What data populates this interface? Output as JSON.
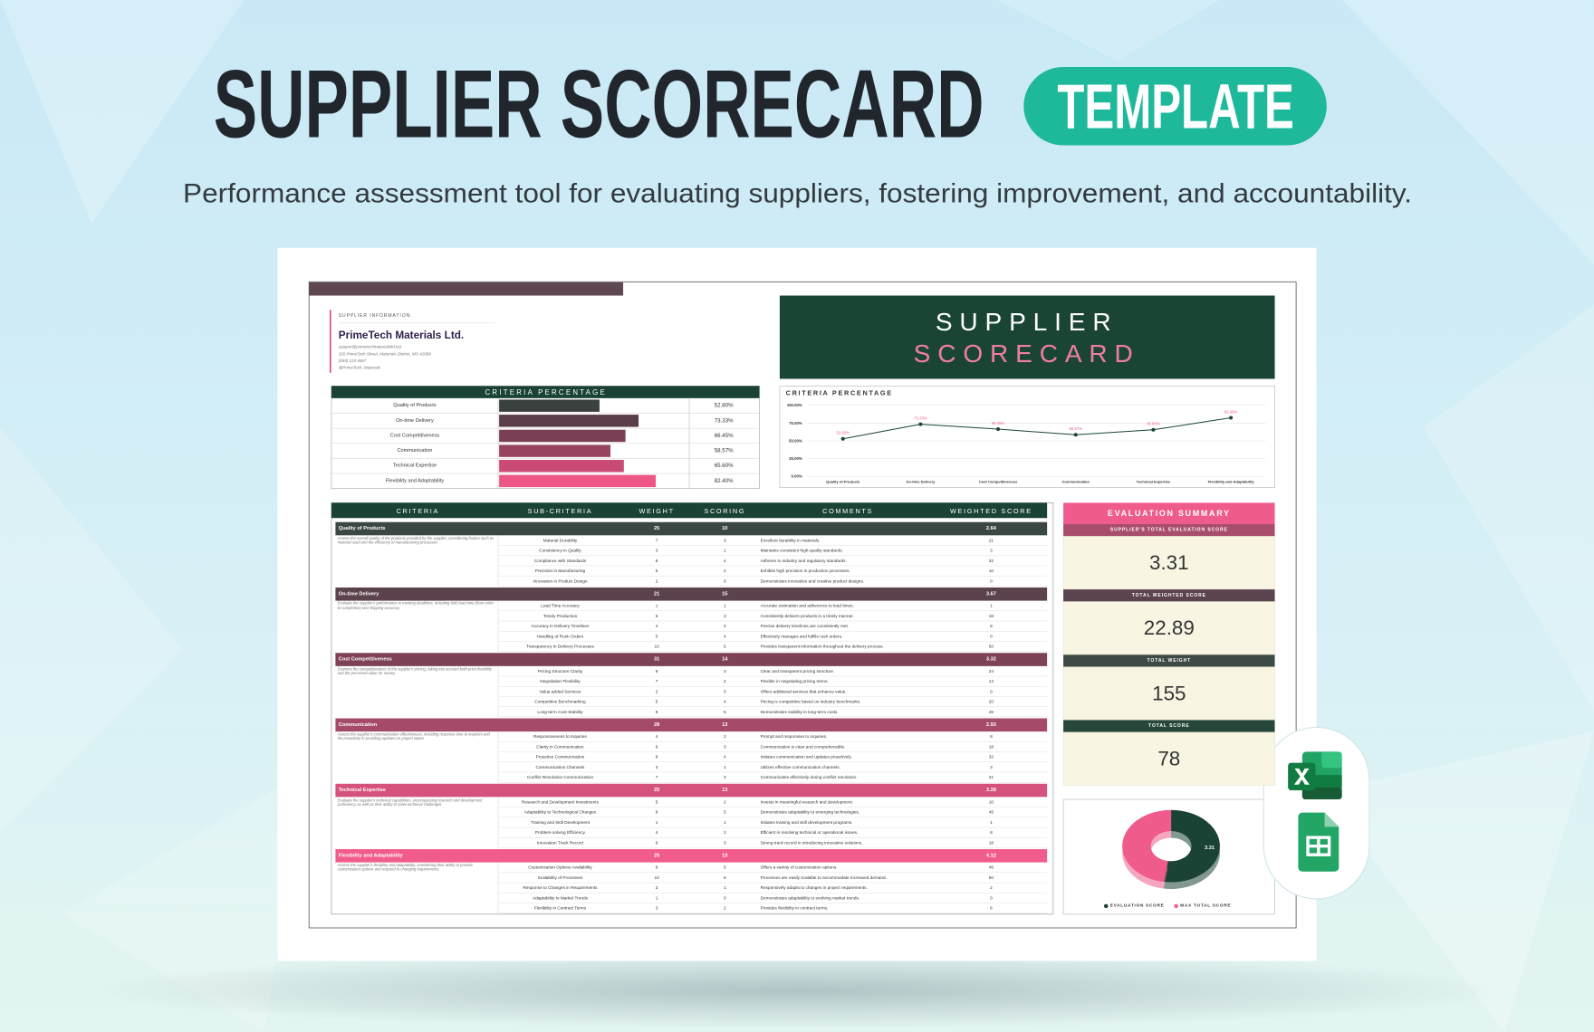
{
  "header": {
    "title": "SUPPLIER SCORECARD",
    "badge": "TEMPLATE",
    "subtitle": "Performance assessment tool for evaluating suppliers, fostering improvement, and accountability."
  },
  "supplier": {
    "label": "SUPPLIER INFORMATION:",
    "name": "PrimeTech Materials Ltd.",
    "lines": [
      "support@primetechmaterialsltd.net",
      "320 PrimeTech Street, Materials District, MO 42098",
      "(555) 123-4567",
      "@PrimeTech_Materials"
    ]
  },
  "banner": {
    "line1": "SUPPLIER",
    "line2": "SCORECARD"
  },
  "chart_data": [
    {
      "type": "bar",
      "title": "CRITERIA PERCENTAGE",
      "categories": [
        "Quality of Products",
        "On-time Delivery",
        "Cost Competitiveness",
        "Communication",
        "Technical Expertise",
        "Flexibility and Adaptability"
      ],
      "values": [
        52.8,
        73.33,
        66.45,
        58.57,
        65.6,
        82.4
      ],
      "value_labels": [
        "52.80%",
        "73.33%",
        "66.45%",
        "58.57%",
        "65.60%",
        "82.40%"
      ],
      "colors": [
        "#3b413e",
        "#5a3d48",
        "#7b3f55",
        "#984461",
        "#c94b75",
        "#ee5686"
      ],
      "xlim": [
        0,
        100
      ]
    },
    {
      "type": "line",
      "title": "CRITERIA PERCENTAGE",
      "categories": [
        "Quality of Products",
        "On-time Delivery",
        "Cost Competitiveness",
        "Communication",
        "Technical Expertise",
        "Flexibility and Adaptability"
      ],
      "values": [
        52.8,
        73.33,
        66.45,
        58.57,
        65.6,
        82.4
      ],
      "value_labels": [
        "52.80%",
        "73.33%",
        "66.45%",
        "58.57%",
        "65.60%",
        "82.40%"
      ],
      "color": "#1b4335",
      "label_color": "#ef5b8b",
      "ylim": [
        0,
        100
      ],
      "yticks": [
        {
          "value": 0,
          "label": "0.00%"
        },
        {
          "value": 25,
          "label": "25.00%"
        },
        {
          "value": 50,
          "label": "50.00%"
        },
        {
          "value": 75,
          "label": "75.00%"
        },
        {
          "value": 100,
          "label": "100.00%"
        }
      ],
      "grid": true
    },
    {
      "type": "pie",
      "categories": [
        "EVALUATION SCORE",
        "MAX TOTAL SCORE"
      ],
      "values": [
        3.31,
        3
      ],
      "colors": [
        "#1b4335",
        "#ef5b8b"
      ]
    }
  ],
  "table": {
    "columns": [
      "CRITERIA",
      "SUB-CRITERIA",
      "WEIGHT",
      "SCORING",
      "COMMENTS",
      "WEIGHTED SCORE"
    ],
    "groups": [
      {
        "name": "Quality of Products",
        "weight": 25,
        "scoring": 10,
        "weighted_score": 2.64,
        "color": "#3a4742",
        "description": "Assess the overall quality of the products provided by the supplier, considering factors such as material used and the efficiency of manufacturing processes.",
        "rows": [
          {
            "sub": "Material Durability",
            "weight": 7,
            "scoring": 3,
            "comment": "Excellent durability in materials.",
            "weighted": 21
          },
          {
            "sub": "Consistency in Quality",
            "weight": 3,
            "scoring": 1,
            "comment": "Maintains consistent high-quality standards.",
            "weighted": 3
          },
          {
            "sub": "Compliance with Standards",
            "weight": 8,
            "scoring": 4,
            "comment": "Adheres to industry and regulatory standards.",
            "weighted": 32
          },
          {
            "sub": "Precision in Manufacturing",
            "weight": 5,
            "scoring": 2,
            "comment": "Exhibits high precision in production processes.",
            "weighted": 10
          },
          {
            "sub": "Innovation in Product Design",
            "weight": 2,
            "scoring": 0,
            "comment": "Demonstrates innovative and creative product designs.",
            "weighted": 0
          }
        ]
      },
      {
        "name": "On-time Delivery",
        "weight": 21,
        "scoring": 15,
        "weighted_score": 3.67,
        "color": "#5c424c",
        "description": "Evaluate the supplier's performance in meeting deadlines, including both lead time (from order to completion) and shipping accuracy.",
        "rows": [
          {
            "sub": "Lead Time Accuracy",
            "weight": 1,
            "scoring": 1,
            "comment": "Accurate estimation and adherence to lead times.",
            "weighted": 1
          },
          {
            "sub": "Timely Production",
            "weight": 6,
            "scoring": 3,
            "comment": "Consistently delivers products in a timely manner.",
            "weighted": 18
          },
          {
            "sub": "Accuracy in Delivery Timelines",
            "weight": 4,
            "scoring": 2,
            "comment": "Precise delivery timelines are consistently met.",
            "weighted": 8
          },
          {
            "sub": "Handling of Rush Orders",
            "weight": 0,
            "scoring": 4,
            "comment": "Effectively manages and fulfills rush orders.",
            "weighted": 0
          },
          {
            "sub": "Transparency in Delivery Processes",
            "weight": 10,
            "scoring": 5,
            "comment": "Provides transparent information throughout the delivery process.",
            "weighted": 50
          }
        ]
      },
      {
        "name": "Cost Competitiveness",
        "weight": 31,
        "scoring": 14,
        "weighted_score": 3.32,
        "color": "#7e4256",
        "description": "Examine the competitiveness of the supplier's pricing, taking into account both price flexibility and the perceived value for money.",
        "rows": [
          {
            "sub": "Pricing Structure Clarity",
            "weight": 8,
            "scoring": 3,
            "comment": "Clear and transparent pricing structure.",
            "weighted": 24
          },
          {
            "sub": "Negotiation Flexibility",
            "weight": 7,
            "scoring": 2,
            "comment": "Flexible in negotiating pricing terms.",
            "weighted": 14
          },
          {
            "sub": "Value-added Services",
            "weight": 2,
            "scoring": 0,
            "comment": "Offers additional services that enhance value.",
            "weighted": 0
          },
          {
            "sub": "Competitive Benchmarking",
            "weight": 5,
            "scoring": 4,
            "comment": "Pricing is competitive based on industry benchmarks.",
            "weighted": 20
          },
          {
            "sub": "Long-term Cost Stability",
            "weight": 9,
            "scoring": 5,
            "comment": "Demonstrates stability in long-term costs.",
            "weighted": 45
          }
        ]
      },
      {
        "name": "Communication",
        "weight": 28,
        "scoring": 13,
        "weighted_score": 2.93,
        "color": "#a54a69",
        "description": "Assess the supplier's communication effectiveness, including response time to inquiries and the proactivity in providing updates on project status.",
        "rows": [
          {
            "sub": "Responsiveness to Inquiries",
            "weight": 4,
            "scoring": 2,
            "comment": "Prompt and responsive to inquiries.",
            "weighted": 8
          },
          {
            "sub": "Clarity in Communication",
            "weight": 6,
            "scoring": 3,
            "comment": "Communication is clear and comprehensible.",
            "weighted": 18
          },
          {
            "sub": "Proactive Communication",
            "weight": 8,
            "scoring": 4,
            "comment": "Initiates communication and updates proactively.",
            "weighted": 32
          },
          {
            "sub": "Communication Channels",
            "weight": 3,
            "scoring": 1,
            "comment": "Utilizes effective communication channels.",
            "weighted": 3
          },
          {
            "sub": "Conflict Resolution Communication",
            "weight": 7,
            "scoring": 3,
            "comment": "Communicates effectively during conflict resolution.",
            "weighted": 21
          }
        ]
      },
      {
        "name": "Technical Expertise",
        "weight": 25,
        "scoring": 13,
        "weighted_score": 3.28,
        "color": "#d5527c",
        "description": "Evaluate the supplier's technical capabilities, encompassing research and development proficiency, as well as their ability to solve technical challenges.",
        "rows": [
          {
            "sub": "Research and Development Investments",
            "weight": 5,
            "scoring": 2,
            "comment": "Invests in meaningful research and development.",
            "weighted": 10
          },
          {
            "sub": "Adaptability to Technological Changes",
            "weight": 9,
            "scoring": 5,
            "comment": "Demonstrates adaptability to emerging technologies.",
            "weighted": 45
          },
          {
            "sub": "Training and Skill Development",
            "weight": 1,
            "scoring": 1,
            "comment": "Initiates training and skill development programs.",
            "weighted": 1
          },
          {
            "sub": "Problem-solving Efficiency",
            "weight": 4,
            "scoring": 2,
            "comment": "Efficient in resolving technical or operational issues.",
            "weighted": 8
          },
          {
            "sub": "Innovation Track Record",
            "weight": 6,
            "scoring": 3,
            "comment": "Strong track record in introducing innovative solutions.",
            "weighted": 18
          }
        ]
      },
      {
        "name": "Flexibility and Adaptability",
        "weight": 25,
        "scoring": 13,
        "weighted_score": 4.12,
        "color": "#f25c8c",
        "description": "Assess the supplier's flexibility and adaptability, considering their ability to provide customization options and respond to changing requirements.",
        "rows": [
          {
            "sub": "Customization Options Availability",
            "weight": 9,
            "scoring": 5,
            "comment": "Offers a variety of customization options.",
            "weighted": 45
          },
          {
            "sub": "Scalability of Processes",
            "weight": 10,
            "scoring": 5,
            "comment": "Processes are easily scalable to accommodate increased demand.",
            "weighted": 50
          },
          {
            "sub": "Response to Changes in Requirements",
            "weight": 2,
            "scoring": 1,
            "comment": "Responsively adapts to changes in project requirements.",
            "weighted": 2
          },
          {
            "sub": "Adaptability to Market Trends",
            "weight": 1,
            "scoring": 0,
            "comment": "Demonstrates adaptability to evolving market trends.",
            "weighted": 0
          },
          {
            "sub": "Flexibility in Contract Terms",
            "weight": 3,
            "scoring": 2,
            "comment": "Provides flexibility in contract terms.",
            "weighted": 6
          }
        ]
      }
    ]
  },
  "summary": {
    "title": "EVALUATION SUMMARY",
    "items": [
      {
        "label": "SUPPLIER'S TOTAL EVALUATION SCORE",
        "value": 3.31,
        "color": "#a84d6b"
      },
      {
        "label": "TOTAL WEIGHTED SCORE",
        "value": 22.89,
        "color": "#5b4350"
      },
      {
        "label": "TOTAL WEIGHT",
        "value": 155,
        "color": "#3e4a45"
      },
      {
        "label": "TOTAL SCORE",
        "value": 78,
        "color": "#27473a"
      }
    ]
  }
}
